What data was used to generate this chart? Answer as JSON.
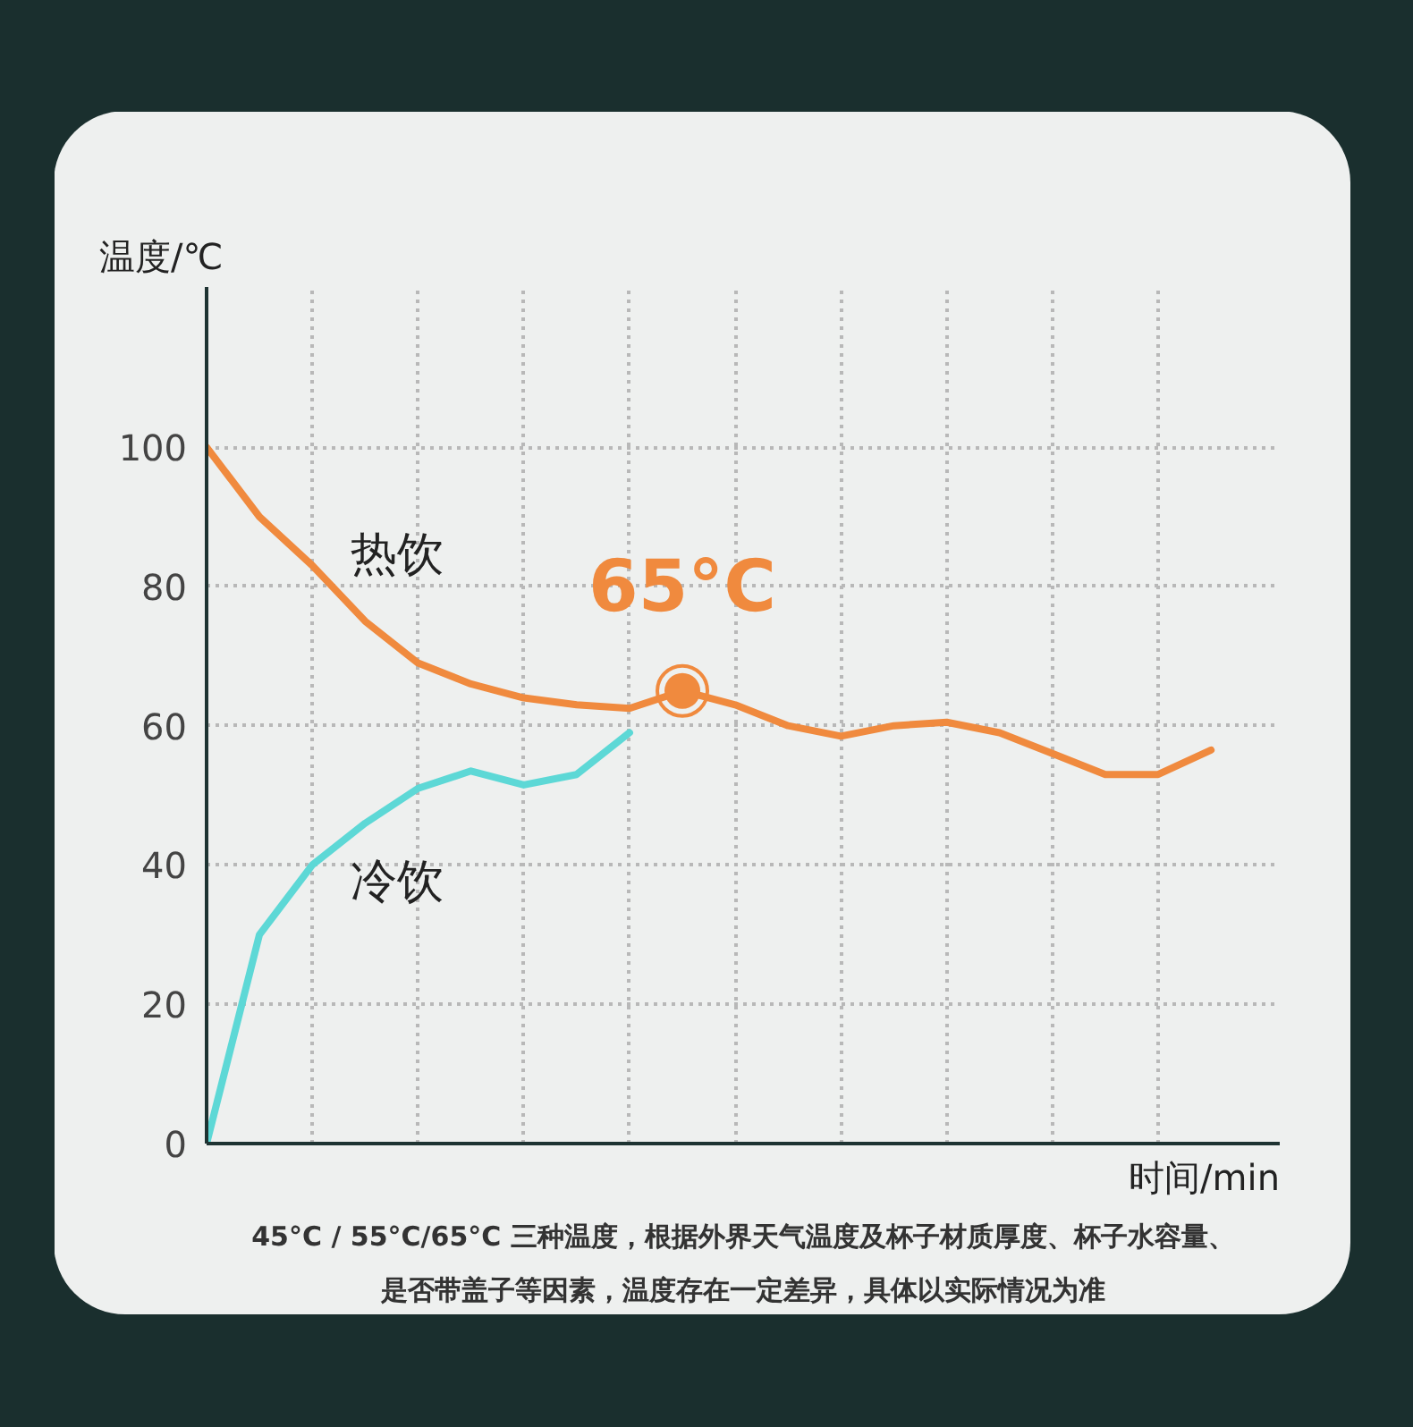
{
  "chart_data": {
    "type": "line",
    "xlabel": "时间/min",
    "ylabel": "温度/℃",
    "categories": [
      null,
      null,
      null,
      null,
      null,
      null,
      null,
      null,
      null,
      null,
      null,
      null,
      null,
      null,
      null,
      null,
      null,
      null,
      null,
      null
    ],
    "series": [
      {
        "name": "热饮",
        "color": "#f08a3e",
        "values": [
          100,
          90,
          83,
          75,
          69,
          66,
          64,
          63,
          62.5,
          65,
          63,
          60,
          58.5,
          60,
          60.5,
          59,
          56,
          53,
          53,
          56.5
        ]
      },
      {
        "name": "冷饮",
        "color": "#5dd8d6",
        "values": [
          0,
          30,
          40,
          46,
          51,
          53.5,
          51.5,
          53,
          59,
          null,
          null,
          null,
          null,
          null,
          null,
          null,
          null,
          null,
          null,
          null
        ]
      },
      {
        "type": "scatter",
        "color": "#f08a3e",
        "values": [
          null,
          null,
          null,
          null,
          null,
          null,
          null,
          null,
          null,
          65,
          null,
          null,
          null,
          null,
          null,
          null,
          null,
          null,
          null,
          null
        ]
      }
    ],
    "ylim": [
      0,
      123
    ],
    "yticks": [
      0,
      20,
      40,
      60,
      80,
      100
    ],
    "grid": true,
    "annotations": [
      "65°C",
      "45°C / 55°C/65°C 三种温度，根据外界天气温度及杯子材质厚度、杯子水容量、",
      "是否带盖子等因素，温度存在一定差异，具体以实际情况为准"
    ]
  }
}
